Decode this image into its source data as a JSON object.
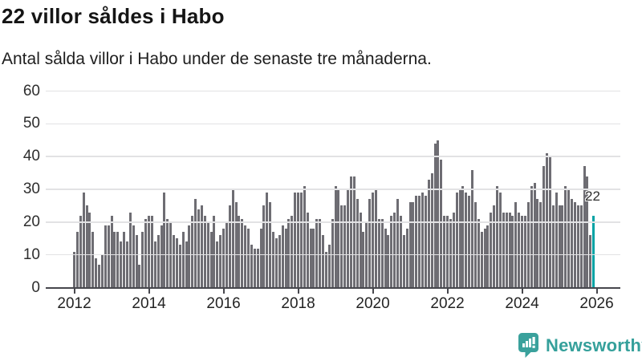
{
  "header": {
    "title": "22 villor såldes i Habo",
    "subtitle": "Antal sålda villor i Habo under de senaste tre månaderna."
  },
  "chart_data": {
    "type": "bar",
    "title": "22 villor såldes i Habo",
    "subtitle": "Antal sålda villor i Habo under de senaste tre månaderna.",
    "xlabel": "",
    "ylabel": "",
    "ylim": [
      0,
      60
    ],
    "y_ticks": [
      0,
      10,
      20,
      30,
      40,
      50,
      60
    ],
    "x_tick_labels": [
      "2012",
      "2014",
      "2016",
      "2018",
      "2020",
      "2022",
      "2024",
      "2026"
    ],
    "x_start_month": "2012-01",
    "x_end_month": "2025-12",
    "grid": "horizontal gridlines drawn over bars",
    "legend": "none",
    "bar_color": "#6e6d73",
    "highlight_color": "#00a2a4",
    "highlight_index_from_end": 1,
    "highlight_value": 22,
    "highlight_label": "22",
    "values": [
      11,
      17,
      22,
      29,
      25,
      23,
      17,
      9,
      7,
      10,
      19,
      19,
      22,
      17,
      17,
      14,
      17,
      14,
      23,
      19,
      16,
      7,
      17,
      21,
      22,
      22,
      14,
      16,
      19,
      29,
      21,
      20,
      16,
      15,
      13,
      17,
      14,
      19,
      22,
      27,
      24,
      25,
      22,
      20,
      17,
      22,
      14,
      16,
      18,
      20,
      25,
      30,
      26,
      22,
      21,
      19,
      18,
      13,
      12,
      12,
      18,
      25,
      29,
      26,
      17,
      15,
      16,
      19,
      18,
      21,
      22,
      29,
      29,
      29,
      31,
      23,
      18,
      18,
      21,
      21,
      16,
      11,
      13,
      21,
      31,
      30,
      25,
      25,
      30,
      34,
      34,
      27,
      23,
      17,
      20,
      27,
      29,
      30,
      21,
      21,
      18,
      16,
      22,
      23,
      27,
      22,
      16,
      18,
      26,
      26,
      28,
      28,
      29,
      28,
      33,
      35,
      44,
      45,
      39,
      22,
      22,
      21,
      23,
      29,
      30,
      31,
      29,
      28,
      36,
      26,
      21,
      17,
      18,
      19,
      23,
      25,
      31,
      29,
      23,
      23,
      23,
      22,
      26,
      23,
      22,
      22,
      26,
      31,
      32,
      27,
      26,
      37,
      41,
      40,
      25,
      29,
      25,
      25,
      31,
      30,
      27,
      26,
      25,
      25,
      37,
      34,
      16,
      22
    ]
  },
  "footer": {
    "brand": "Newsworthy",
    "logo_icon": "bar-chart-speech-bubble-icon",
    "brand_color": "#35a09b"
  },
  "colors": {
    "background": "#ffffff",
    "bar_gray": "#6e6d73",
    "bar_teal": "#00a2a4",
    "gridline": "#e2e2e4",
    "axis_line": "#47474d",
    "text_dark": "#151515",
    "axis_text": "#2e2e2e"
  }
}
